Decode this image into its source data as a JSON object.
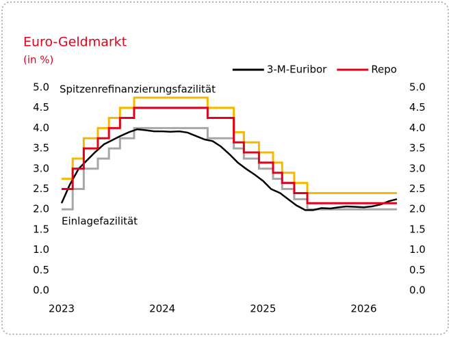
{
  "chart_data": {
    "type": "line",
    "title": "Euro-Geldmarkt",
    "subtitle": "(in %)",
    "annotations": [
      "Spitzenrefinanzierungsfazilität",
      "Einlagefazilität"
    ],
    "xlim": [
      2023,
      2026.33
    ],
    "xticks": [
      2023,
      2024,
      2025,
      2026
    ],
    "ylim": [
      0,
      5
    ],
    "yticks": [
      {
        "value": 0,
        "label": "0.0"
      },
      {
        "value": 0.5,
        "label": "0.5"
      },
      {
        "value": 1,
        "label": "1.0"
      },
      {
        "value": 1.5,
        "label": "1.5"
      },
      {
        "value": 2,
        "label": "2.0"
      },
      {
        "value": 2.5,
        "label": "2.5"
      },
      {
        "value": 3,
        "label": "3.0"
      },
      {
        "value": 3.5,
        "label": "3.5"
      },
      {
        "value": 4,
        "label": "4.0"
      },
      {
        "value": 4.5,
        "label": "4.5"
      },
      {
        "value": 5,
        "label": "5.0"
      }
    ],
    "y2lim": [
      0,
      5
    ],
    "y2ticks": [
      {
        "value": 0,
        "label": "0.0"
      },
      {
        "value": 0.5,
        "label": "0.5"
      },
      {
        "value": 1,
        "label": "1.0"
      },
      {
        "value": 1.5,
        "label": "1.5"
      },
      {
        "value": 2,
        "label": "2.0"
      },
      {
        "value": 2.5,
        "label": "2.5"
      },
      {
        "value": 3,
        "label": "3.0"
      },
      {
        "value": 3.5,
        "label": "3.5"
      },
      {
        "value": 4,
        "label": "4.0"
      },
      {
        "value": 4.5,
        "label": "4.5"
      },
      {
        "value": 5,
        "label": "5.0"
      }
    ],
    "legend": "top-right",
    "series": [
      {
        "color": "#f5b800",
        "step": true,
        "x": [
          2023,
          2023.11,
          2023.22,
          2023.36,
          2023.47,
          2023.58,
          2023.72,
          2024.45,
          2024.71,
          2024.81,
          2024.96,
          2025.1,
          2025.19,
          2025.31,
          2025.44,
          2026.33
        ],
        "values": [
          2.75,
          3.25,
          3.75,
          4.0,
          4.25,
          4.5,
          4.75,
          4.5,
          3.9,
          3.65,
          3.4,
          3.15,
          2.9,
          2.65,
          2.4,
          2.4
        ]
      },
      {
        "color": "#a6a6a6",
        "step": true,
        "x": [
          2023,
          2023.11,
          2023.22,
          2023.36,
          2023.47,
          2023.58,
          2023.72,
          2024.45,
          2024.71,
          2024.81,
          2024.96,
          2025.1,
          2025.19,
          2025.31,
          2025.44,
          2026.33
        ],
        "values": [
          2.0,
          2.5,
          3.0,
          3.25,
          3.5,
          3.75,
          4.0,
          3.75,
          3.5,
          3.25,
          3.0,
          2.75,
          2.5,
          2.25,
          2.0,
          2.0
        ]
      },
      {
        "name": "3-M-Euribor",
        "color": "#000000",
        "x": [
          2023,
          2023.08,
          2023.17,
          2023.25,
          2023.33,
          2023.42,
          2023.5,
          2023.58,
          2023.67,
          2023.75,
          2023.83,
          2023.92,
          2024,
          2024.08,
          2024.17,
          2024.25,
          2024.33,
          2024.42,
          2024.5,
          2024.58,
          2024.67,
          2024.75,
          2024.83,
          2024.92,
          2025,
          2025.08,
          2025.17,
          2025.25,
          2025.33,
          2025.42,
          2025.5,
          2025.58,
          2025.67,
          2025.75,
          2025.83,
          2025.92,
          2026,
          2026.08,
          2026.17,
          2026.25,
          2026.33
        ],
        "values": [
          2.15,
          2.6,
          3.0,
          3.2,
          3.4,
          3.6,
          3.7,
          3.8,
          3.9,
          3.97,
          3.95,
          3.92,
          3.92,
          3.91,
          3.92,
          3.89,
          3.81,
          3.72,
          3.68,
          3.55,
          3.35,
          3.15,
          3.0,
          2.85,
          2.7,
          2.5,
          2.4,
          2.25,
          2.1,
          1.98,
          1.98,
          2.03,
          2.02,
          2.05,
          2.07,
          2.06,
          2.05,
          2.07,
          2.12,
          2.2,
          2.25
        ]
      },
      {
        "name": "Repo",
        "color": "#e2001a",
        "step": true,
        "x": [
          2023,
          2023.11,
          2023.22,
          2023.36,
          2023.47,
          2023.58,
          2023.72,
          2024.45,
          2024.71,
          2024.81,
          2024.96,
          2025.1,
          2025.19,
          2025.31,
          2025.44,
          2026.33
        ],
        "values": [
          2.5,
          3.0,
          3.5,
          3.75,
          4.0,
          4.25,
          4.5,
          4.25,
          3.65,
          3.4,
          3.15,
          2.9,
          2.65,
          2.4,
          2.15,
          2.15
        ]
      }
    ]
  }
}
